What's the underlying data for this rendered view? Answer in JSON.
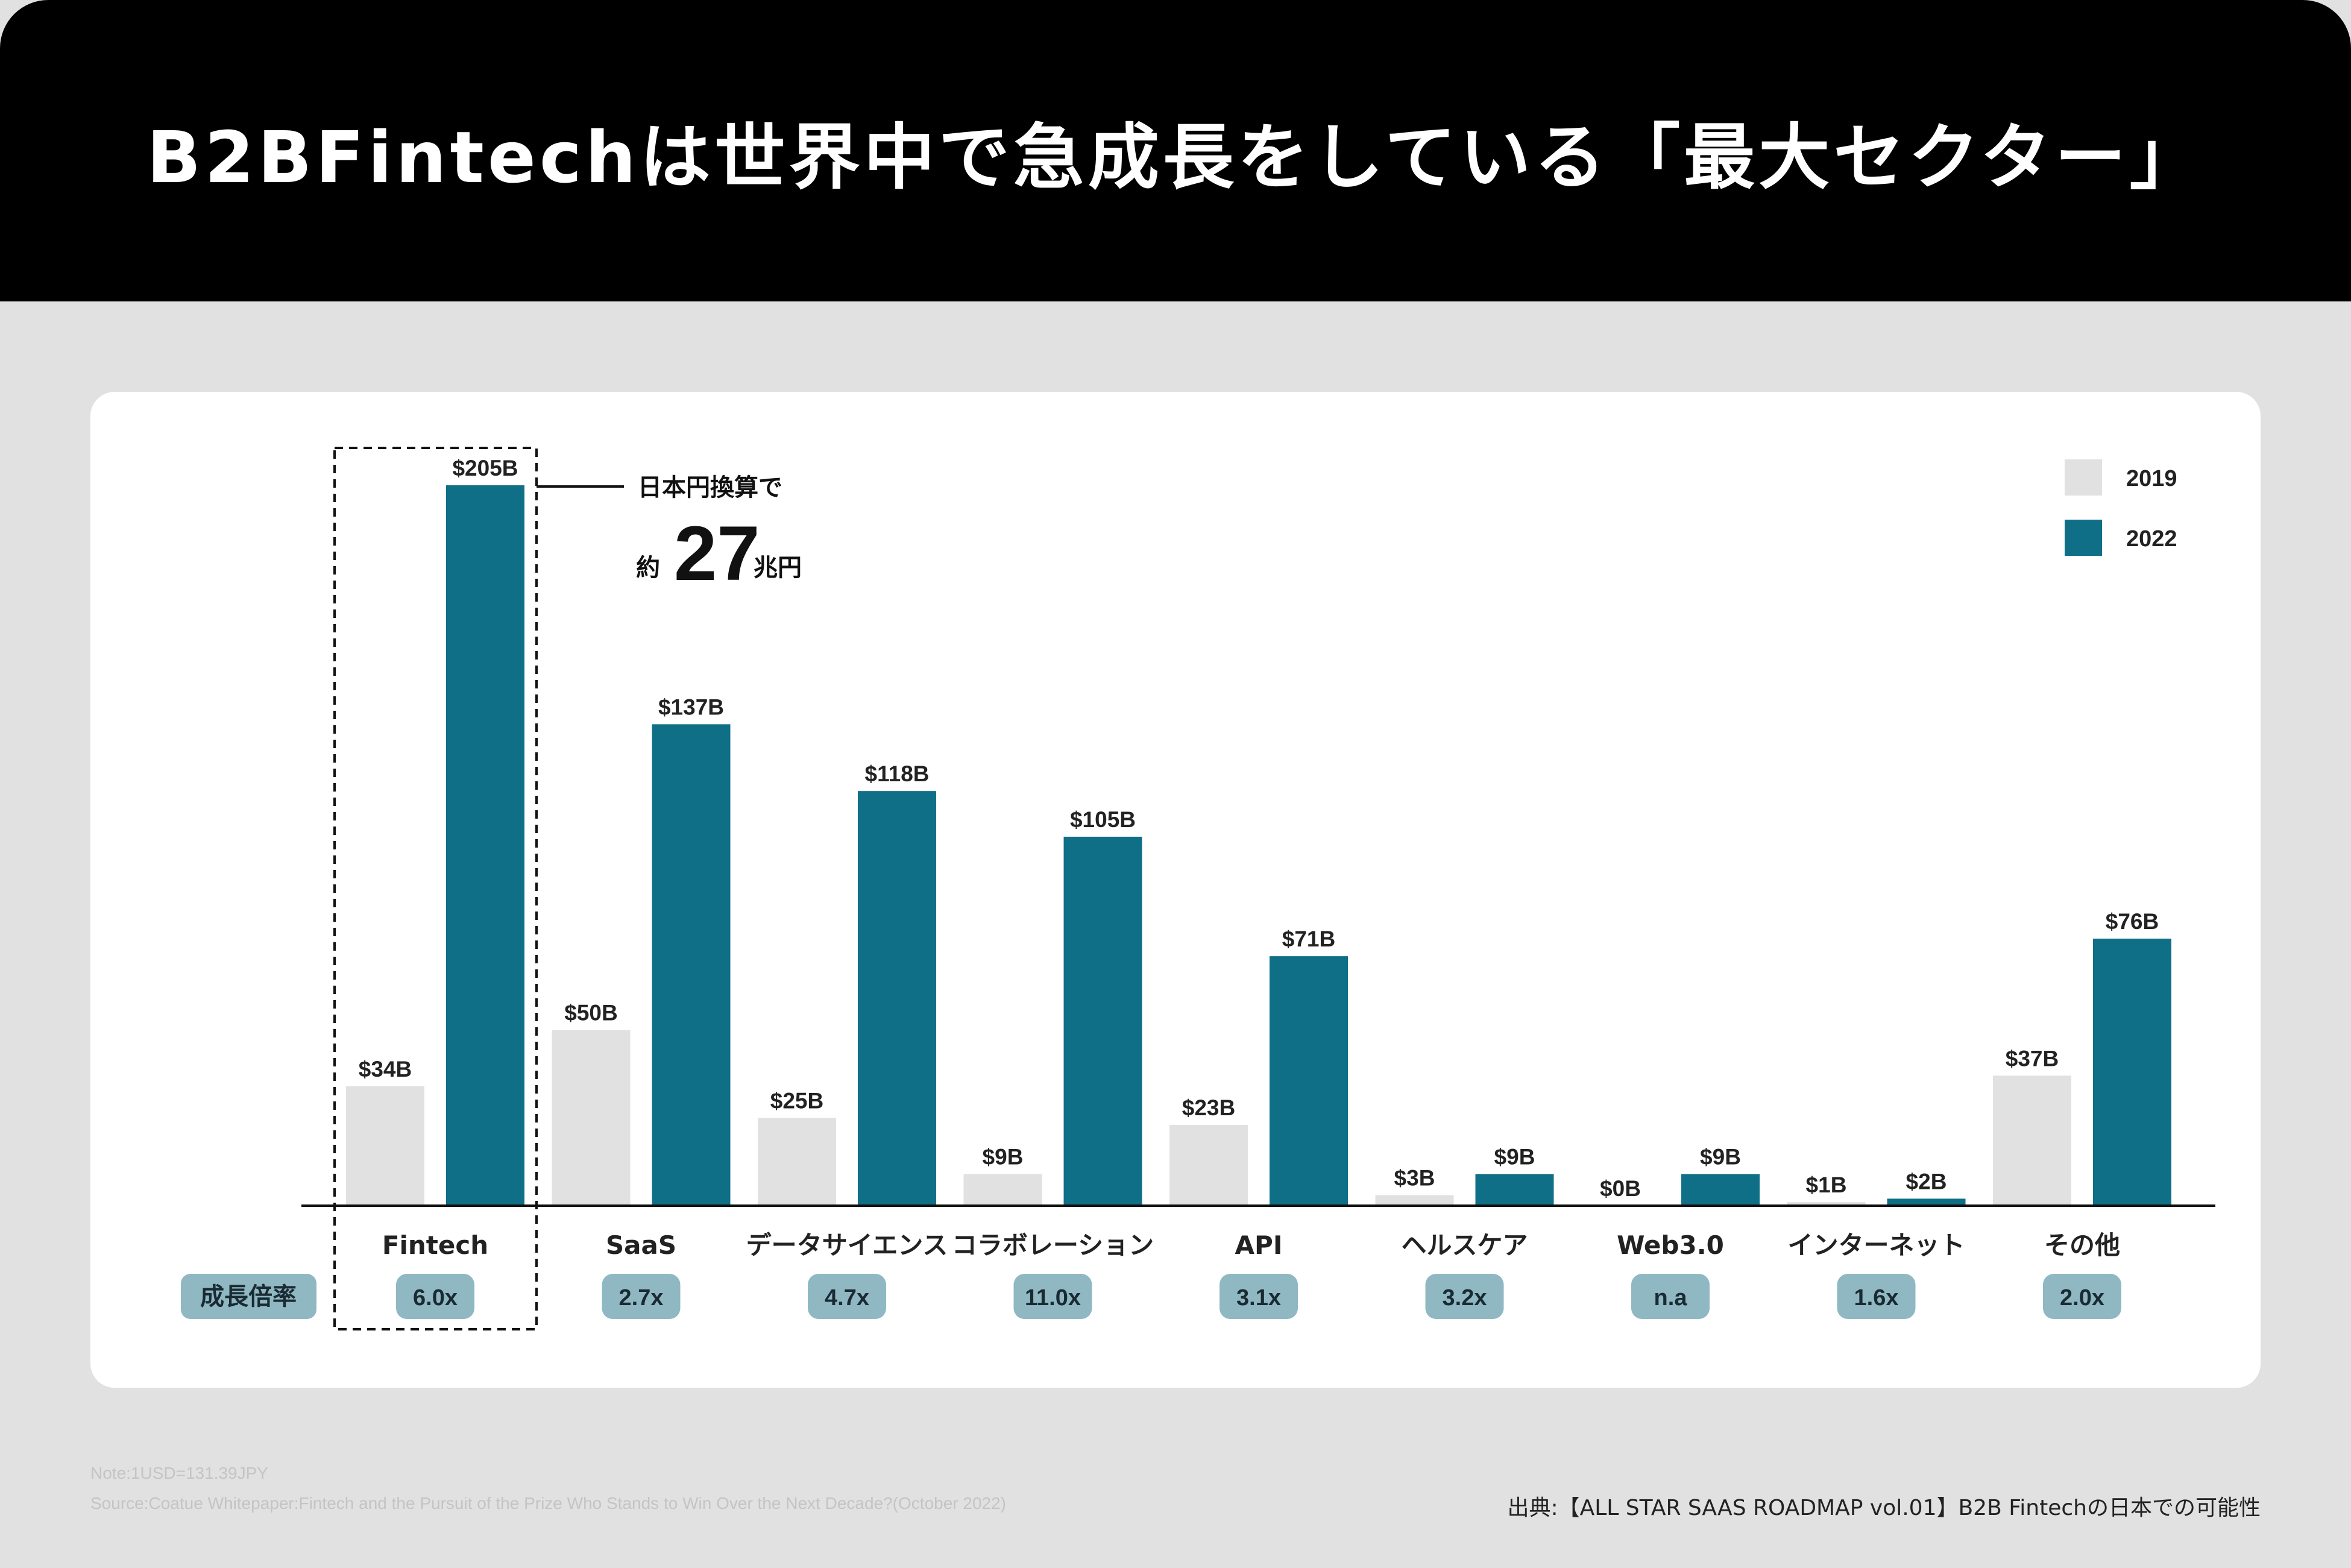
{
  "header": {
    "title": "B2BFintechは世界中で急成長をしている「最大セクター」"
  },
  "chart_data": {
    "type": "bar",
    "categories": [
      "Fintech",
      "SaaS",
      "データサイエンス",
      "コラボレーション",
      "API",
      "ヘルスケア",
      "Web3.0",
      "インターネット",
      "その他"
    ],
    "series": [
      {
        "name": "2019",
        "values": [
          34,
          50,
          25,
          9,
          23,
          3,
          0,
          1,
          37
        ],
        "labels": [
          "$34B",
          "$50B",
          "$25B",
          "$9B",
          "$23B",
          "$3B",
          "$0B",
          "$1B",
          "$37B"
        ],
        "color": "#e1e1e1"
      },
      {
        "name": "2022",
        "values": [
          205,
          137,
          118,
          105,
          71,
          9,
          9,
          2,
          76
        ],
        "labels": [
          "$205B",
          "$137B",
          "$118B",
          "$105B",
          "$71B",
          "$9B",
          "$9B",
          "$2B",
          "$76B"
        ],
        "color": "#0f6f87"
      }
    ],
    "growth_label": "成長倍率",
    "growth_rates": [
      "6.0x",
      "2.7x",
      "4.7x",
      "11.0x",
      "3.1x",
      "3.2x",
      "n.a",
      "1.6x",
      "2.0x"
    ],
    "ylim": [
      0,
      205
    ],
    "legend": [
      "2019",
      "2022"
    ],
    "legend_position": "top-right",
    "annotation": {
      "line1": "日本円換算で",
      "prefix": "約",
      "number": "27",
      "suffix": "兆円"
    },
    "highlight_category": "Fintech"
  },
  "colors": {
    "c2019": "#e1e1e1",
    "c2022": "#0f6f87",
    "badge": "#8fb8c3"
  },
  "footer": {
    "note": "Note:1USD=131.39JPY",
    "source_left": "Source:Coatue Whitepaper:Fintech and the Pursuit of the Prize Who Stands to Win Over the Next Decade?(October 2022)",
    "source_right": "出典:【ALL STAR SAAS ROADMAP vol.01】B2B Fintechの日本での可能性"
  }
}
